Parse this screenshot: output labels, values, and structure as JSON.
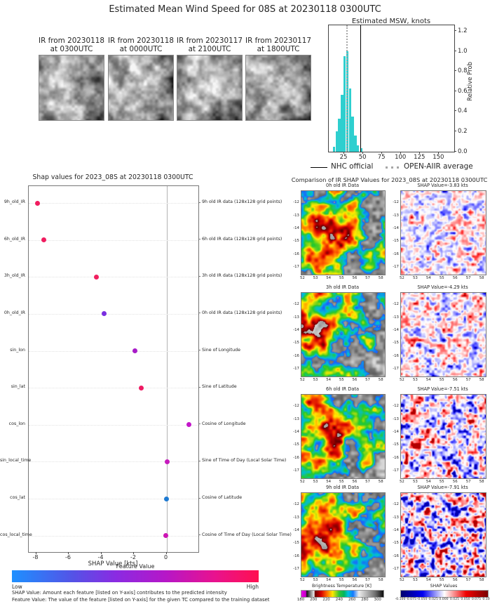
{
  "title": "Estimated Mean Wind Speed for 08S at 20230118 0300UTC",
  "ir_thumbnails": [
    {
      "label_line1": "IR from 20230118",
      "label_line2": "at 0300UTC"
    },
    {
      "label_line1": "IR from 20230118",
      "label_line2": "at 0000UTC"
    },
    {
      "label_line1": "IR from 20230117",
      "label_line2": "at 2100UTC"
    },
    {
      "label_line1": "IR from 20230117",
      "label_line2": "at 1800UTC"
    }
  ],
  "chart_data": [
    {
      "type": "bar",
      "title": "Estimated MSW, knots",
      "xlabel": "",
      "ylabel": "Relative Prob",
      "xlim": [
        4.6,
        170
      ],
      "ylim": [
        0,
        1.26
      ],
      "xticks": [
        25,
        50,
        75,
        100,
        125,
        150
      ],
      "yticks": [
        0.0,
        0.2,
        0.4,
        0.6,
        0.8,
        1.0,
        1.2
      ],
      "bin_start": 10,
      "bin_width": 3.5,
      "bar_heights": [
        0.05,
        0.2,
        0.33,
        0.57,
        0.95,
        1.0,
        0.63,
        0.35,
        0.16,
        0.06
      ],
      "outlier_bar": {
        "x": 45.8,
        "width": 3.4,
        "height": 0.035
      },
      "vlines": [
        {
          "label": "NHC official",
          "x": 46,
          "style": "solid",
          "color": "#000000"
        },
        {
          "label": "OPEN-AIIR average",
          "x": 27.5,
          "style": "dotted",
          "color": "#a6a6a6"
        }
      ],
      "legend": [
        "NHC official",
        "OPEN-AIIR average"
      ]
    },
    {
      "type": "scatter",
      "title": "Shap values for 2023_08S at 20230118 0300UTC",
      "xlabel": "SHAP Value [kts]",
      "xlim": [
        -8.45,
        1.96
      ],
      "xticks": [
        -8,
        -6,
        -4,
        -2,
        0
      ],
      "features": [
        {
          "name": "9h_old_IR",
          "description": "9h old IR data (128x128 grid points)",
          "shap": -7.91,
          "color": "#f01c5f"
        },
        {
          "name": "6h_old_IR",
          "description": "6h old IR data (128x128 grid points)",
          "shap": -7.51,
          "color": "#f01c5f"
        },
        {
          "name": "3h_old_IR",
          "description": "3h old IR data (128x128 grid points)",
          "shap": -4.29,
          "color": "#f0205f"
        },
        {
          "name": "0h_old_IR",
          "description": "0h old IR data (128x128 grid points)",
          "shap": -3.83,
          "color": "#7a2ee0"
        },
        {
          "name": "sin_lon",
          "description": "Sine of Longitude",
          "shap": -1.95,
          "color": "#a81cc8"
        },
        {
          "name": "sin_lat",
          "description": "Sine of Latitude",
          "shap": -1.55,
          "color": "#ee1a63"
        },
        {
          "name": "cos_lon",
          "description": "Cosine of Longitude",
          "shap": 1.37,
          "color": "#c316c9"
        },
        {
          "name": "sin_local_time",
          "description": "Sine of Time of Day (Local Solar Time)",
          "shap": 0.05,
          "color": "#c61bbd"
        },
        {
          "name": "cos_lat",
          "description": "Cosine of Latitude",
          "shap": 0.0,
          "color": "#1e7ad2"
        },
        {
          "name": "cos_local_time",
          "description": "Cosine of Time of Day (Local Solar Time)",
          "shap": -0.05,
          "color": "#cc15b4"
        }
      ],
      "colorbar": {
        "title": "Feature Value",
        "low_label": "Low",
        "high_label": "High"
      }
    }
  ],
  "comparison": {
    "title": "Comparison of IR SHAP Values for 2023_08S at 20230118 0300UTC",
    "rows": [
      {
        "ir_title": "0h old IR Data",
        "shap_title": "SHAP Value=-3.83 kts"
      },
      {
        "ir_title": "3h old IR Data",
        "shap_title": "SHAP Value=-4.29 kts"
      },
      {
        "ir_title": "6h old IR Data",
        "shap_title": "SHAP Value=-7.51 kts"
      },
      {
        "ir_title": "9h old IR Data",
        "shap_title": "SHAP Value=-7.91 kts"
      }
    ],
    "yticks": [
      "-12",
      "-13",
      "-14",
      "-15",
      "-16",
      "-17"
    ],
    "xticks": [
      "52",
      "53",
      "54",
      "55",
      "56",
      "57",
      "58"
    ],
    "bt_colorbar": {
      "title": "Brightness Temperature [K]",
      "ticks": [
        "180",
        "200",
        "220",
        "240",
        "260",
        "280",
        "300"
      ]
    },
    "shap_colorbar": {
      "title": "SHAP Values",
      "ticks": [
        "-0.100",
        "-0.075",
        "-0.050",
        "-0.025",
        "0.000",
        "0.025",
        "0.050",
        "0.075",
        "0.100"
      ]
    }
  },
  "footnotes": [
    "SHAP Value: Amount each feature [listed on Y-axis] contributes to the predicted intensity",
    "Feature Value: The value of the feature [listed on Y-axis] for the given TC compared to the training dataset"
  ],
  "colors": {
    "histogram_bar": "#2ecfcf",
    "nhc_line": "#000000",
    "openaiir_marker": "#a6a6a6",
    "feature_value_low": "#1e90ff",
    "feature_value_high": "#ff1050",
    "shap_negative": "#0000f0",
    "shap_positive": "#f00000"
  }
}
